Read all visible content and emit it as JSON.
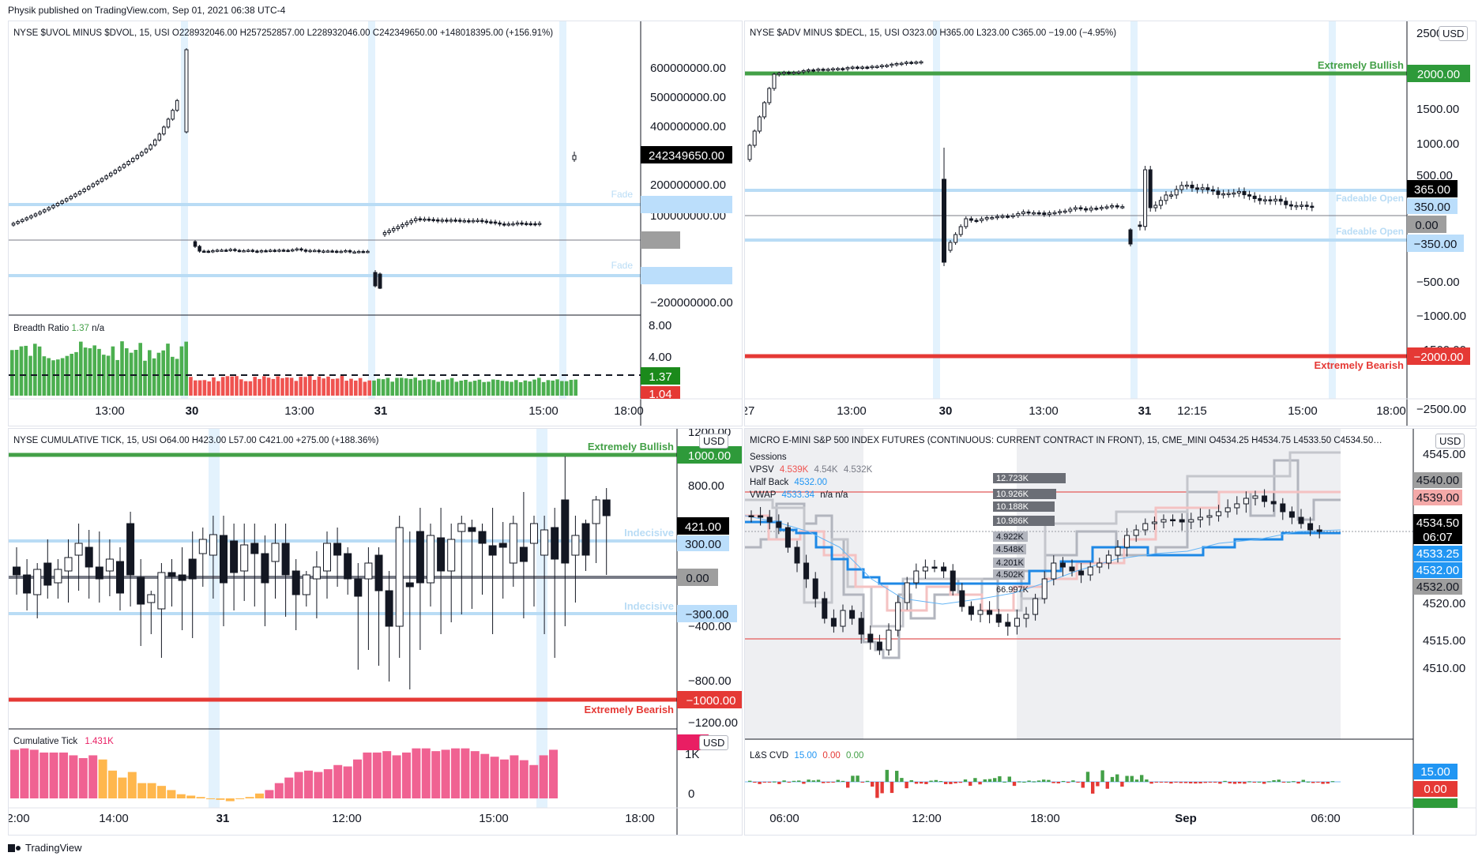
{
  "header": {
    "publisher": "Physik published on TradingView.com, Sep 01, 2021 06:38 UTC-4"
  },
  "footer": {
    "brand": "TradingView"
  },
  "colors": {
    "bullish": "#43a047",
    "bearish": "#e53935",
    "fade": "#b9dcf5",
    "pink": "#f06292",
    "orange": "#ffb74d",
    "blue": "#2196f3"
  },
  "panels": {
    "uvol": {
      "title": "NYSE $UVOL MINUS $DVOL, 15, USI  O228932046.00  H257252857.00  L228932046.00  C242349650.00  +148018395.00 (+156.91%)",
      "yticks": [
        "600000000.00",
        "500000000.00",
        "400000000.00",
        "300000000.00",
        "200000000.00",
        "100000000.00",
        "0.00",
        "-100000000.00",
        "−200000000.00"
      ],
      "price_tag": "242349650.00",
      "fade_label": "Fade",
      "sub_title": "Breadth Ratio",
      "sub_value": "1.37",
      "sub_na": "n/a",
      "sub_yticks": [
        "8.00",
        "4.00"
      ],
      "sub_tag_green": "1.37",
      "sub_tag_red": "1.04",
      "xticks": [
        "13:00",
        "30",
        "13:00",
        "31",
        "15:00",
        "18:00"
      ]
    },
    "adv": {
      "title": "NYSE $ADV MINUS $DECL, 15, USI  O323.00  H365.00  L323.00  C365.00  −19.00 (−4.95%)",
      "yticks": [
        "2500.00",
        "2000.00",
        "1500.00",
        "1000.00",
        "500.00",
        "0.00",
        "−500.00",
        "−1000.00",
        "−1500.00",
        "−2000.00",
        "−2500.00"
      ],
      "bull_label": "Extremely Bullish",
      "bear_label": "Extremely Bearish",
      "fade_label": "Fadeable Open",
      "tags": {
        "top": "2000.00",
        "price": "365.00",
        "plus": "350.00",
        "zero": "0.00",
        "minus": "−350.00",
        "bottom": "−2000.00"
      },
      "usd": "USD",
      "xticks": [
        "27",
        "13:00",
        "30",
        "13:00",
        "31",
        "12:15",
        "15:00",
        "18:00"
      ]
    },
    "tick": {
      "title": "NYSE CUMULATIVE TICK, 15, USI  O64.00  H423.00  L57.00  C421.00  +275.00 (+188.36%)",
      "yticks": [
        "1200.00",
        "800.00",
        "400.00",
        "0.00",
        "−400.00",
        "−800.00",
        "−1200.00"
      ],
      "bull_label": "Extremely Bullish",
      "bear_label": "Extremely Bearish",
      "indecisive_label": "Indecisive",
      "tags": {
        "top": "1000.00",
        "price": "421.00",
        "plus": "300.00",
        "zero": "0.00",
        "minus": "−300.00",
        "bottom": "−1000.00"
      },
      "usd": "USD",
      "sub_title": "Cumulative Tick",
      "sub_value": "1.431K",
      "sub_yticks": [
        "1K",
        "0"
      ],
      "sub_tag": "1.431K",
      "xticks": [
        "2:00",
        "14:00",
        "31",
        "12:00",
        "15:00",
        "18:00"
      ]
    },
    "mes": {
      "title": "MICRO E-MINI S&P 500 INDEX FUTURES (CONTINUOUS: CURRENT CONTRACT IN FRONT), 15, CME_MINI  O4534.25  H4534.75  L4533.50  C4534.50…",
      "legend": {
        "sessions": "Sessions",
        "vpsv": "VPSV",
        "vpsv_vals": [
          "4.539K",
          "4.54K",
          "4.532K"
        ],
        "halfback": "Half Back",
        "halfback_val": "4532.00",
        "vwap": "VWAP",
        "vwap_val": "4533.34",
        "vwap_na": "n/a  n/a"
      },
      "yticks": [
        "4545.00",
        "4540.00",
        "4535.00",
        "4530.00",
        "4525.00",
        "4520.00",
        "4515.00",
        "4510.00"
      ],
      "tags": {
        "a": "4540.00",
        "b": "4539.00",
        "price": "4534.50",
        "time": "06:07",
        "c": "4533.25",
        "d": "4532.00",
        "e": "4532.00"
      },
      "usd": "USD",
      "vp_labels": [
        "12.723K",
        "10.926K",
        "10.188K",
        "10.986K",
        "4.922K",
        "4.548K",
        "4.201K",
        "4.502K",
        "66.997K"
      ],
      "sub_title": "L&S CVD",
      "sub_vals": [
        "15.00",
        "0.00",
        "0.00"
      ],
      "sub_tag_blue": "15.00",
      "sub_tag_red": "0.00",
      "xticks": [
        "06:00",
        "12:00",
        "18:00",
        "Sep",
        "06:00"
      ]
    }
  }
}
